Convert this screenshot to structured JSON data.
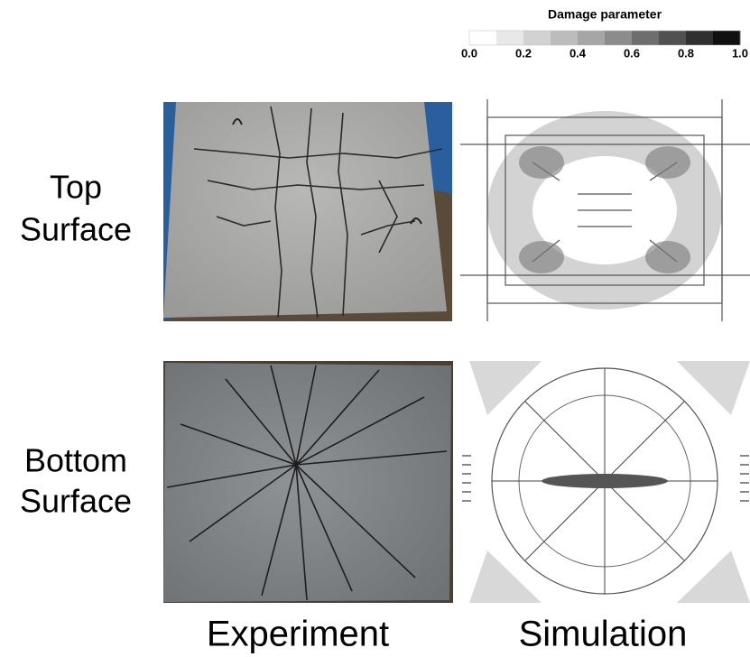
{
  "colorbar": {
    "title": "Damage parameter",
    "colors": [
      "#ffffff",
      "#e8e8e8",
      "#d2d2d2",
      "#bcbcbc",
      "#a6a6a6",
      "#8c8c8c",
      "#6e6e6e",
      "#505050",
      "#303030",
      "#101010"
    ],
    "ticks": [
      {
        "value": 0,
        "label": "0.0"
      },
      0.2,
      0.4,
      0.6,
      0.8,
      {
        "value": 1,
        "label": "1.0"
      }
    ]
  },
  "row_labels": [
    [
      "Top",
      "Surface"
    ],
    [
      "Bottom",
      "Surface"
    ]
  ],
  "column_labels": [
    "Experiment",
    "Simulation"
  ]
}
